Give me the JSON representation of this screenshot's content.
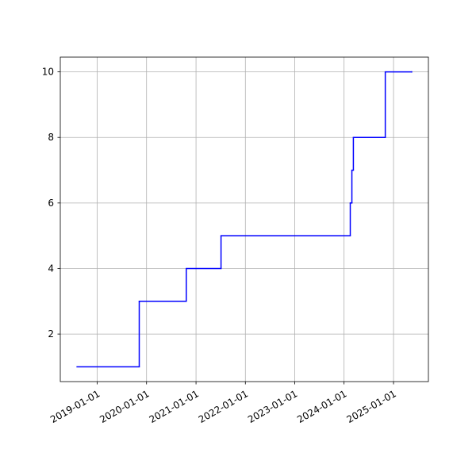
{
  "chart_data": {
    "type": "line",
    "step": "post",
    "color": "#0000ff",
    "x": [
      "2018-08-05",
      "2019-11-08",
      "2020-10-21",
      "2021-07-05",
      "2024-02-16",
      "2024-02-28",
      "2024-03-10",
      "2024-11-01",
      "2025-05-15"
    ],
    "values": [
      1,
      3,
      4,
      5,
      6,
      7,
      8,
      10,
      10
    ],
    "xlim": [
      "2018-04-03",
      "2025-09-16"
    ],
    "xticks": [
      "2019-01-01",
      "2020-01-01",
      "2021-01-01",
      "2022-01-01",
      "2023-01-01",
      "2024-01-01",
      "2025-01-01"
    ],
    "ylim": [
      0.55,
      10.45
    ],
    "yticks": [
      2,
      4,
      6,
      8,
      10
    ],
    "grid": true
  }
}
